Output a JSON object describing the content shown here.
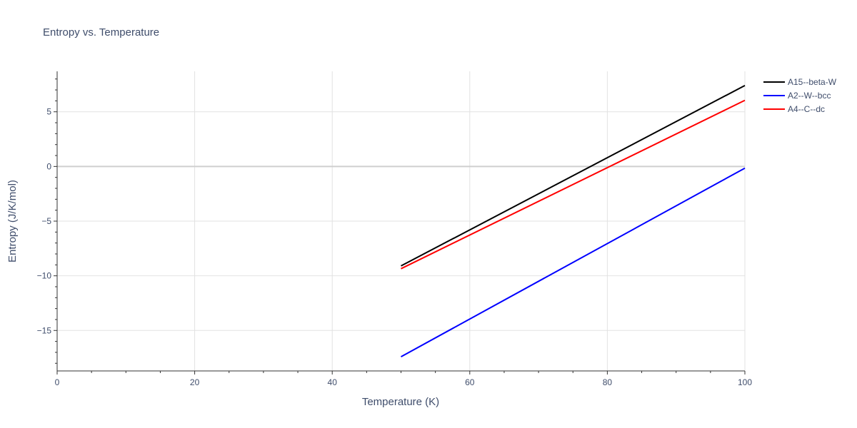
{
  "chart_data": {
    "type": "line",
    "title": "Entropy vs. Temperature",
    "xlabel": "Temperature (K)",
    "ylabel": "Entropy (J/K/mol)",
    "xlim": [
      0,
      100
    ],
    "ylim": [
      -18.7,
      8.7
    ],
    "x_ticks": [
      0,
      20,
      40,
      60,
      80,
      100
    ],
    "x_tick_labels": [
      "0",
      "20",
      "40",
      "60",
      "80",
      "100"
    ],
    "y_ticks": [
      5,
      0,
      -5,
      -10,
      -15
    ],
    "y_tick_labels": [
      "5",
      "0",
      "−5",
      "−10",
      "−15"
    ],
    "grid": true,
    "legend_position": "top-right",
    "series": [
      {
        "name": "A15--beta-W",
        "color": "#000000",
        "x": [
          50,
          100
        ],
        "y": [
          -9.1,
          7.4
        ]
      },
      {
        "name": "A2--W--bcc",
        "color": "#0000ff",
        "x": [
          50,
          100
        ],
        "y": [
          -17.4,
          -0.15
        ]
      },
      {
        "name": "A4--C--dc",
        "color": "#ff0000",
        "x": [
          50,
          100
        ],
        "y": [
          -9.35,
          6.05
        ]
      }
    ]
  }
}
